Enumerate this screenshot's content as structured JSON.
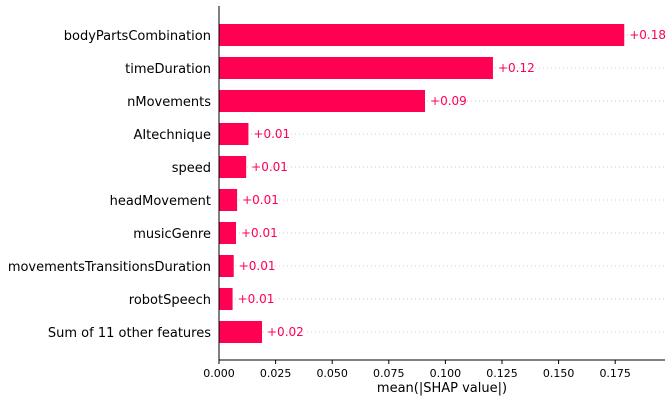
{
  "chart_data": {
    "type": "bar",
    "orientation": "horizontal",
    "categories": [
      "bodyPartsCombination",
      "timeDuration",
      "nMovements",
      "AItechnique",
      "speed",
      "headMovement",
      "musicGenre",
      "movementsTransitionsDuration",
      "robotSpeech",
      "Sum of 11 other features"
    ],
    "values": [
      0.179,
      0.121,
      0.091,
      0.013,
      0.012,
      0.008,
      0.0075,
      0.0065,
      0.006,
      0.019
    ],
    "data_labels": [
      "+0.18",
      "+0.12",
      "+0.09",
      "+0.01",
      "+0.01",
      "+0.01",
      "+0.01",
      "+0.01",
      "+0.01",
      "+0.02"
    ],
    "xlabel": "mean(|SHAP value|)",
    "xlim": [
      0,
      0.197
    ],
    "xticks": [
      0.0,
      0.025,
      0.05,
      0.075,
      0.1,
      0.125,
      0.15,
      0.175
    ],
    "xtick_labels": [
      "0.000",
      "0.025",
      "0.050",
      "0.075",
      "0.100",
      "0.125",
      "0.150",
      "0.175"
    ],
    "grid": "horizontal dotted lines at each category",
    "colors": {
      "bar": "#ff0052",
      "label": "#ff0052",
      "grid": "#cccccc",
      "axis": "#000000"
    }
  }
}
